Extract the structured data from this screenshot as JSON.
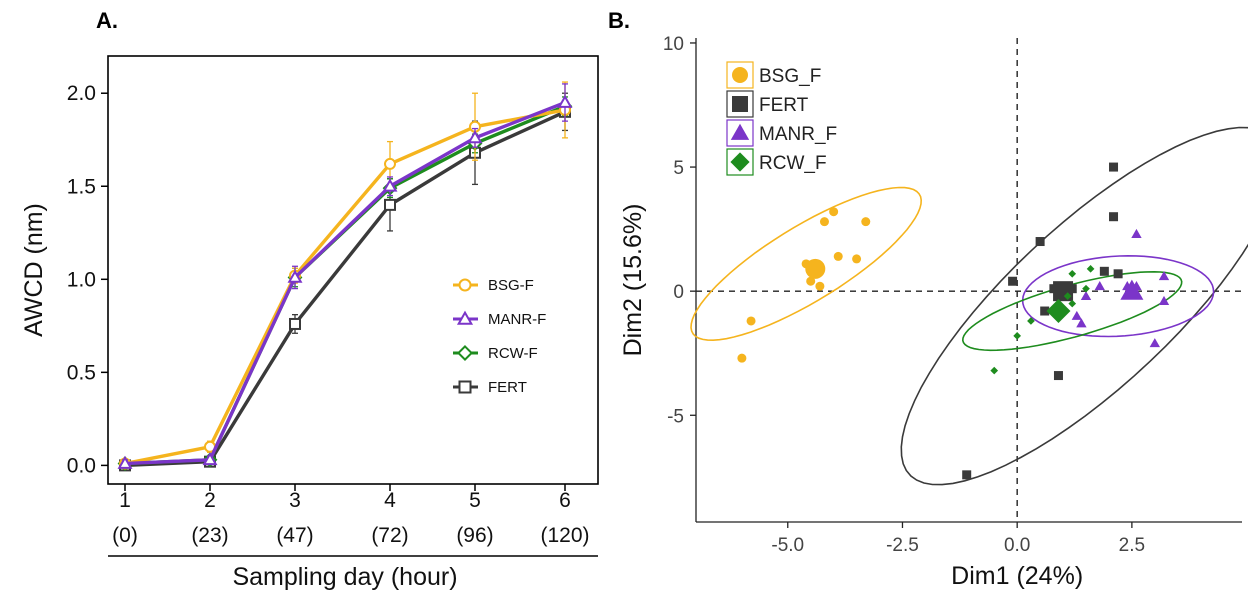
{
  "panel_a_label": "A.",
  "panel_b_label": "B.",
  "chart_data": [
    {
      "type": "line",
      "panel": "A.",
      "xlabel": "Sampling day (hour)",
      "ylabel": "AWCD (nm)",
      "categories": [
        "1",
        "2",
        "3",
        "4",
        "5",
        "6"
      ],
      "hour_labels": [
        "(0)",
        "(23)",
        "(47)",
        "(72)",
        "(96)",
        "(120)"
      ],
      "ylim": [
        -0.1,
        2.2
      ],
      "yticks": [
        0.0,
        0.5,
        1.0,
        1.5,
        2.0
      ],
      "ytick_labels": [
        "0.0",
        "0.5",
        "1.0",
        "1.5",
        "2.0"
      ],
      "grid": false,
      "legend_position": "right",
      "series": [
        {
          "name": "BSG-F",
          "marker": "circle",
          "color": "#F5B41E",
          "values": [
            0.01,
            0.1,
            1.02,
            1.62,
            1.82,
            1.91
          ],
          "errors": [
            0.02,
            0.03,
            0.04,
            0.12,
            0.18,
            0.15
          ]
        },
        {
          "name": "MANR-F",
          "marker": "triangle",
          "color": "#7B35C9",
          "values": [
            0.01,
            0.03,
            1.01,
            1.5,
            1.76,
            1.95
          ],
          "errors": [
            0.02,
            0.02,
            0.06,
            0.05,
            0.05,
            0.1
          ]
        },
        {
          "name": "RCW-F",
          "marker": "diamond",
          "color": "#1E8C1E",
          "values": [
            0.01,
            0.03,
            1.01,
            1.49,
            1.73,
            1.93
          ],
          "errors": [
            0.02,
            0.02,
            0.05,
            0.05,
            0.05,
            0.05
          ]
        },
        {
          "name": "FERT",
          "marker": "square",
          "color": "#3A3A3A",
          "values": [
            0.0,
            0.02,
            0.76,
            1.4,
            1.68,
            1.9
          ],
          "errors": [
            0.02,
            0.02,
            0.05,
            0.14,
            0.17,
            0.1
          ]
        }
      ]
    },
    {
      "type": "scatter",
      "panel": "B.",
      "xlabel": "Dim1 (24%)",
      "ylabel": "Dim2 (15.6%)",
      "xlim": [
        -7.0,
        4.9
      ],
      "ylim": [
        -9.3,
        10.2
      ],
      "xticks": [
        -5.0,
        -2.5,
        0.0,
        2.5
      ],
      "xtick_labels": [
        "-5.0",
        "-2.5",
        "0.0",
        "2.5"
      ],
      "yticks": [
        -5,
        0,
        5,
        10
      ],
      "ytick_labels": [
        "-5",
        "0",
        "5",
        "10"
      ],
      "grid": false,
      "legend_position": "top-left",
      "series": [
        {
          "name": "BSG_F",
          "marker": "circle",
          "color": "#F5B41E",
          "points": [
            [
              -4.2,
              2.8
            ],
            [
              -4.0,
              3.2
            ],
            [
              -3.3,
              2.8
            ],
            [
              -4.6,
              1.1
            ],
            [
              -3.9,
              1.4
            ],
            [
              -3.5,
              1.3
            ],
            [
              -4.5,
              0.4
            ],
            [
              -4.3,
              0.2
            ],
            [
              -5.8,
              -1.2
            ],
            [
              -6.0,
              -2.7
            ]
          ],
          "centroid": [
            -4.4,
            0.9
          ],
          "ellipse": {
            "center": [
              -4.6,
              1.1
            ],
            "semi_major": 3.8,
            "semi_minor": 1.15,
            "angle_deg": 52
          }
        },
        {
          "name": "FERT",
          "marker": "square",
          "color": "#3A3A3A",
          "points": [
            [
              2.1,
              5.0
            ],
            [
              2.1,
              3.0
            ],
            [
              0.5,
              2.0
            ],
            [
              -0.1,
              0.4
            ],
            [
              0.6,
              -0.8
            ],
            [
              1.9,
              0.8
            ],
            [
              2.2,
              0.7
            ],
            [
              1.0,
              0.1
            ],
            [
              0.8,
              0.1
            ],
            [
              1.2,
              0.1
            ],
            [
              0.9,
              -3.4
            ],
            [
              -1.1,
              -7.4
            ]
          ],
          "centroid": [
            1.0,
            0.0
          ],
          "ellipse": {
            "center": [
              1.6,
              -0.6
            ],
            "semi_major": 8.0,
            "semi_minor": 2.2,
            "angle_deg": 63
          }
        },
        {
          "name": "MANR_F",
          "marker": "triangle",
          "color": "#7B35C9",
          "points": [
            [
              2.6,
              2.3
            ],
            [
              1.8,
              0.2
            ],
            [
              2.4,
              0.2
            ],
            [
              2.6,
              0.2
            ],
            [
              3.2,
              0.6
            ],
            [
              3.2,
              -0.4
            ],
            [
              1.5,
              -0.2
            ],
            [
              1.3,
              -1.0
            ],
            [
              1.4,
              -1.3
            ],
            [
              3.0,
              -2.1
            ]
          ],
          "centroid": [
            2.5,
            0.0
          ],
          "ellipse": {
            "center": [
              2.2,
              -0.2
            ],
            "semi_major": 2.1,
            "semi_minor": 1.6,
            "angle_deg": 12
          }
        },
        {
          "name": "RCW_F",
          "marker": "diamond",
          "color": "#1E8C1E",
          "points": [
            [
              1.6,
              0.9
            ],
            [
              1.2,
              0.7
            ],
            [
              1.5,
              0.1
            ],
            [
              1.1,
              -0.2
            ],
            [
              1.2,
              -0.5
            ],
            [
              0.3,
              -1.2
            ],
            [
              0.0,
              -1.8
            ],
            [
              -0.5,
              -3.2
            ]
          ],
          "centroid": [
            0.9,
            -0.8
          ],
          "ellipse": {
            "center": [
              1.2,
              -0.8
            ],
            "semi_major": 2.7,
            "semi_minor": 0.95,
            "angle_deg": 30
          }
        }
      ]
    }
  ]
}
